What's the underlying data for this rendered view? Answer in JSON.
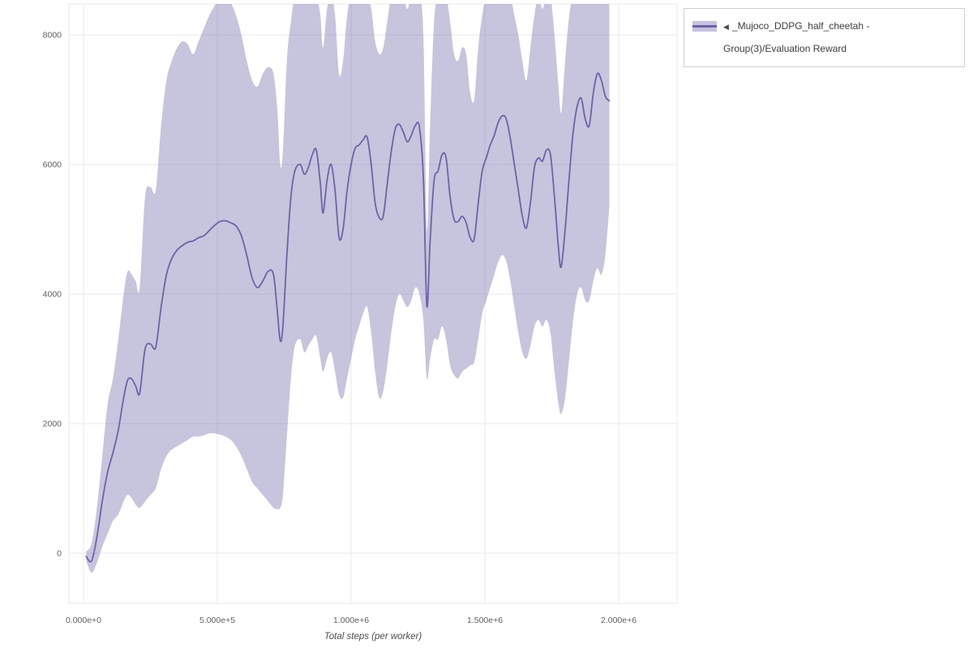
{
  "legend": {
    "toggle_icon": "◀",
    "label": "_Mujoco_DDPG_half_cheetah - Group(3)/Evaluation Reward"
  },
  "chart_data": {
    "type": "line",
    "title": "",
    "xlabel": "Total steps (per worker)",
    "ylabel": "",
    "grid": true,
    "grid_color": "#e8e8e8",
    "legend_position": "top-right",
    "xlim": [
      -54500,
      2218000
    ],
    "ylim": [
      -775,
      8475
    ],
    "xticks": {
      "values": [
        0,
        500000,
        1000000,
        1500000,
        2000000
      ],
      "labels": [
        "0.000e+0",
        "5.000e+5",
        "1.000e+6",
        "1.500e+6",
        "2.000e+6"
      ]
    },
    "yticks": {
      "values": [
        0,
        2000,
        4000,
        6000,
        8000
      ],
      "labels": [
        "0",
        "2000",
        "4000",
        "6000",
        "8000"
      ]
    },
    "series": [
      {
        "name": "_Mujoco_DDPG_half_cheetah - Group(3)/Evaluation Reward",
        "line_color": "#6c63a8",
        "band_color": "rgba(108,99,165,0.38)",
        "band_solid": "#c7c2de",
        "x": [
          10000,
          30000,
          50000,
          70000,
          90000,
          110000,
          130000,
          150000,
          165000,
          180000,
          195000,
          210000,
          230000,
          250000,
          270000,
          290000,
          310000,
          330000,
          350000,
          370000,
          390000,
          410000,
          430000,
          450000,
          470000,
          490000,
          510000,
          530000,
          550000,
          570000,
          590000,
          610000,
          630000,
          650000,
          670000,
          690000,
          710000,
          725000,
          735000,
          745000,
          760000,
          775000,
          790000,
          810000,
          825000,
          840000,
          855000,
          870000,
          885000,
          895000,
          910000,
          925000,
          940000,
          955000,
          970000,
          985000,
          1000000,
          1015000,
          1030000,
          1045000,
          1060000,
          1075000,
          1090000,
          1105000,
          1120000,
          1135000,
          1150000,
          1165000,
          1180000,
          1195000,
          1210000,
          1225000,
          1240000,
          1255000,
          1270000,
          1283000,
          1295000,
          1310000,
          1325000,
          1340000,
          1355000,
          1370000,
          1385000,
          1400000,
          1415000,
          1430000,
          1445000,
          1460000,
          1475000,
          1490000,
          1505000,
          1520000,
          1535000,
          1550000,
          1565000,
          1580000,
          1595000,
          1610000,
          1625000,
          1640000,
          1655000,
          1670000,
          1685000,
          1700000,
          1715000,
          1730000,
          1745000,
          1760000,
          1775000,
          1785000,
          1800000,
          1815000,
          1830000,
          1845000,
          1860000,
          1875000,
          1890000,
          1905000,
          1920000,
          1935000,
          1950000,
          1965000
        ],
        "mean": [
          -50,
          -120,
          250,
          800,
          1250,
          1550,
          1900,
          2400,
          2670,
          2690,
          2580,
          2470,
          3150,
          3230,
          3180,
          3800,
          4300,
          4550,
          4680,
          4750,
          4800,
          4820,
          4870,
          4900,
          4980,
          5060,
          5120,
          5130,
          5100,
          5050,
          4900,
          4600,
          4250,
          4100,
          4200,
          4350,
          4300,
          3700,
          3280,
          3500,
          4600,
          5500,
          5900,
          6000,
          5850,
          5950,
          6150,
          6220,
          5700,
          5250,
          5750,
          6000,
          5600,
          4870,
          5000,
          5600,
          6000,
          6250,
          6300,
          6380,
          6420,
          6000,
          5400,
          5180,
          5200,
          5700,
          6200,
          6550,
          6620,
          6500,
          6350,
          6450,
          6600,
          6580,
          5800,
          3820,
          4800,
          5750,
          5900,
          6150,
          6100,
          5500,
          5150,
          5120,
          5200,
          5100,
          4870,
          4850,
          5400,
          5900,
          6100,
          6300,
          6450,
          6650,
          6750,
          6700,
          6400,
          6000,
          5600,
          5200,
          5020,
          5400,
          5950,
          6100,
          6050,
          6220,
          6150,
          5500,
          4700,
          4420,
          5000,
          5800,
          6500,
          6900,
          7020,
          6700,
          6600,
          7100,
          7400,
          7300,
          7050,
          6980
        ],
        "low": [
          -120,
          -300,
          -150,
          100,
          300,
          500,
          600,
          800,
          900,
          850,
          750,
          700,
          800,
          900,
          1000,
          1300,
          1500,
          1600,
          1650,
          1700,
          1750,
          1800,
          1800,
          1820,
          1850,
          1850,
          1830,
          1800,
          1750,
          1650,
          1500,
          1300,
          1100,
          1000,
          900,
          800,
          700,
          680,
          700,
          900,
          1800,
          2700,
          3200,
          3300,
          3100,
          3200,
          3300,
          3350,
          3000,
          2800,
          3000,
          3100,
          2800,
          2450,
          2400,
          2700,
          3000,
          3300,
          3500,
          3700,
          3800,
          3400,
          2800,
          2400,
          2500,
          2900,
          3400,
          3800,
          4000,
          3900,
          3800,
          3900,
          4100,
          4000,
          3600,
          2700,
          3000,
          3300,
          3300,
          3500,
          3300,
          2900,
          2750,
          2700,
          2800,
          2850,
          2900,
          2950,
          3300,
          3700,
          3900,
          4100,
          4300,
          4500,
          4600,
          4500,
          4200,
          3800,
          3400,
          3100,
          3000,
          3200,
          3500,
          3600,
          3500,
          3600,
          3400,
          2800,
          2300,
          2150,
          2400,
          3000,
          3600,
          4000,
          4100,
          3900,
          3900,
          4200,
          4400,
          4300,
          4600,
          5350
        ],
        "high": [
          30,
          150,
          700,
          1500,
          2300,
          2700,
          3300,
          4000,
          4350,
          4300,
          4200,
          4100,
          5500,
          5650,
          5600,
          6600,
          7300,
          7600,
          7800,
          7900,
          7850,
          7700,
          7900,
          8100,
          8300,
          8450,
          8600,
          8600,
          8500,
          8300,
          8000,
          7600,
          7300,
          7200,
          7400,
          7500,
          7400,
          6800,
          6000,
          6200,
          7600,
          8200,
          8600,
          8600,
          8500,
          8600,
          8600,
          8600,
          8300,
          7800,
          8400,
          8600,
          8300,
          7400,
          7600,
          8300,
          8600,
          8600,
          8600,
          8600,
          8600,
          8400,
          7900,
          7700,
          7800,
          8200,
          8600,
          8600,
          8600,
          8600,
          8400,
          8600,
          8600,
          8600,
          8000,
          5000,
          6600,
          8200,
          8600,
          8600,
          8600,
          8200,
          7700,
          7600,
          7800,
          7700,
          7100,
          7000,
          7800,
          8300,
          8600,
          8600,
          8600,
          8600,
          8600,
          8600,
          8600,
          8300,
          8000,
          7600,
          7300,
          7800,
          8300,
          8600,
          8400,
          8600,
          8600,
          8000,
          7200,
          6800,
          7600,
          8300,
          8600,
          8600,
          8600,
          8600,
          8600,
          8600,
          8600,
          8600,
          8600,
          8600
        ]
      }
    ]
  }
}
